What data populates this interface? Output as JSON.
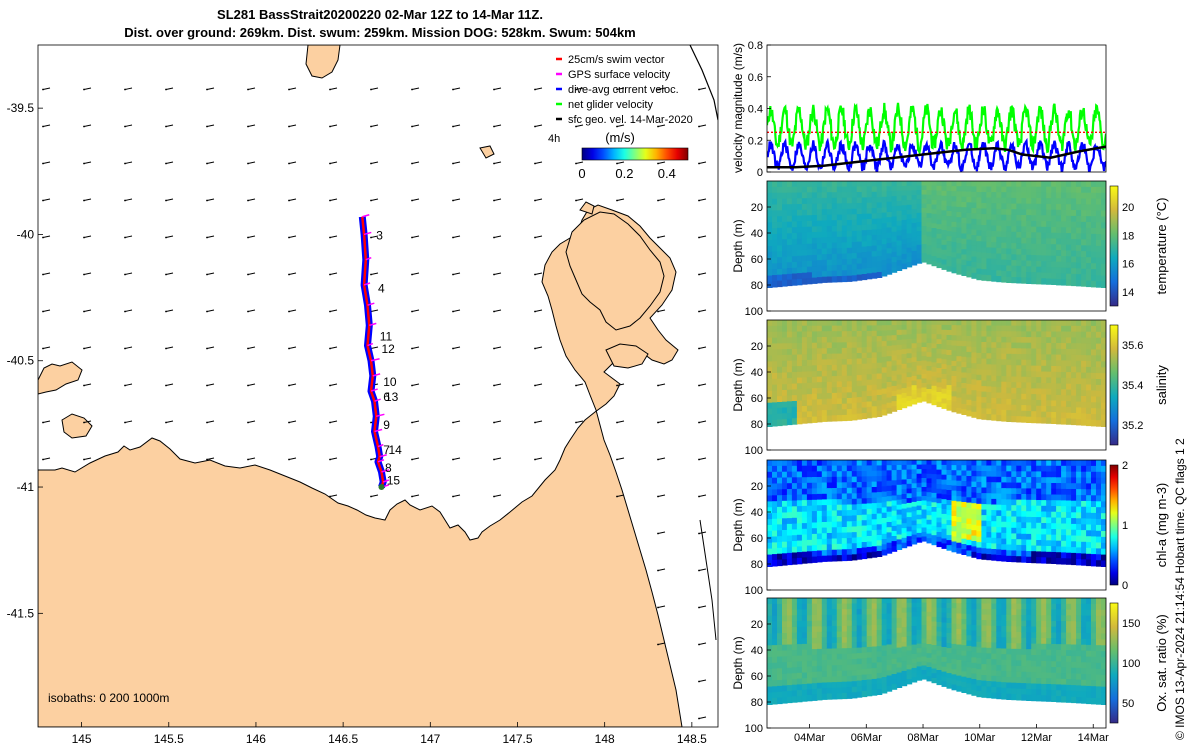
{
  "title": {
    "line1": "SL281 BassStrait20200220 02-Mar 12Z to 14-Mar 11Z.",
    "line2": "Dist. over ground: 269km. Dist. swum: 259km. Mission DOG: 528km. Swum: 504km"
  },
  "footer": "© IMOS 13-Apr-2024 21:14:54 Hobart time. QC flags 1  2",
  "colors": {
    "land": "#fcd0a1",
    "track_blue": "#0000ff",
    "track_red": "#ff0000",
    "gps_magenta": "#ff00ff",
    "net_green": "#00ff00",
    "geo_black": "#000000"
  },
  "chart_data": [
    {
      "type": "map",
      "xlim": [
        144.75,
        148.65
      ],
      "ylim": [
        -41.95,
        -39.25
      ],
      "xticks": [
        145,
        145.5,
        146,
        146.5,
        147,
        147.5,
        148,
        148.5
      ],
      "xtick_labels": [
        "145",
        "145.5",
        "146",
        "146.5",
        "147",
        "147.5",
        "148",
        "148.5"
      ],
      "yticks": [
        -39.5,
        -40,
        -40.5,
        -41,
        -41.5
      ],
      "ytick_labels": [
        "-39.5",
        "-40",
        "-40.5",
        "-41",
        "-41.5"
      ],
      "legend": {
        "entries": [
          "25cm/s swim vector",
          "GPS surface velocity",
          "dive-avg current veloc.",
          "net glider velocity",
          "sfc geo. vel. 14-Mar-2020"
        ],
        "colors": [
          "#ff0000",
          "#ff00ff",
          "#0000ff",
          "#00ff00",
          "#000000"
        ],
        "placement": "top-right"
      },
      "speed_label": "4h",
      "colorbar": {
        "label": "(m/s)",
        "range": [
          0,
          0.5
        ],
        "tick_labels": [
          "0",
          "0.2",
          "0.4"
        ],
        "tick_values": [
          0,
          0.2,
          0.4
        ]
      },
      "isobaths_label": "isobaths: 0   200  1000m",
      "track": {
        "lon": [
          146.61,
          146.62,
          146.63,
          146.62,
          146.64,
          146.65,
          146.64,
          146.66,
          146.67,
          146.66,
          146.68,
          146.69,
          146.68,
          146.7,
          146.71,
          146.7,
          146.72,
          146.73,
          146.72
        ],
        "lat": [
          -39.93,
          -40.0,
          -40.1,
          -40.2,
          -40.28,
          -40.36,
          -40.44,
          -40.5,
          -40.56,
          -40.62,
          -40.66,
          -40.72,
          -40.78,
          -40.84,
          -40.88,
          -40.9,
          -40.94,
          -40.98,
          -41.0
        ]
      },
      "waypoints": [
        {
          "label": "3",
          "lon": 146.69,
          "lat": -40.02
        },
        {
          "label": "4",
          "lon": 146.7,
          "lat": -40.23
        },
        {
          "label": "11",
          "lon": 146.71,
          "lat": -40.42
        },
        {
          "label": "12",
          "lon": 146.72,
          "lat": -40.47
        },
        {
          "label": "10",
          "lon": 146.73,
          "lat": -40.6
        },
        {
          "label": "6",
          "lon": 146.73,
          "lat": -40.66
        },
        {
          "label": "13",
          "lon": 146.74,
          "lat": -40.66
        },
        {
          "label": "9",
          "lon": 146.73,
          "lat": -40.77
        },
        {
          "label": "7",
          "lon": 146.73,
          "lat": -40.87
        },
        {
          "label": "14",
          "lon": 146.76,
          "lat": -40.87
        },
        {
          "label": "8",
          "lon": 146.74,
          "lat": -40.94
        },
        {
          "label": "15",
          "lon": 146.75,
          "lat": -40.99
        }
      ],
      "current_field_direction": "westward"
    },
    {
      "type": "line",
      "ylabel": "velocity magnitude (m/s)",
      "ylim": [
        0,
        0.8
      ],
      "yticks": [
        0,
        0.2,
        0.4,
        0.6,
        0.8
      ],
      "ytick_labels": [
        "0",
        "0.2",
        "0.4",
        "0.6",
        "0.8"
      ],
      "xlim": [
        2.5,
        14.45
      ],
      "series": [
        {
          "role": "net glider velocity",
          "color": "#00ff00",
          "mean": 0.28,
          "amplitude": 0.11,
          "period_days": 0.5
        },
        {
          "role": "dive-avg current veloc.",
          "color": "#0000ff",
          "mean": 0.1,
          "amplitude": 0.07,
          "period_days": 0.5
        },
        {
          "role": "sfc geo. vel. 14-Mar-2020",
          "color": "#000000",
          "x": [
            2.5,
            3.5,
            4.5,
            5.5,
            6.5,
            7.5,
            8.5,
            9.5,
            10.5,
            11.0,
            11.5,
            12.5,
            13.5,
            14.45
          ],
          "y": [
            0.03,
            0.03,
            0.04,
            0.06,
            0.08,
            0.1,
            0.12,
            0.14,
            0.15,
            0.14,
            0.11,
            0.09,
            0.13,
            0.16
          ]
        },
        {
          "role": "25cm/s swim vector",
          "color": "#ff0000",
          "constant": 0.25
        }
      ]
    },
    {
      "type": "heatmap",
      "ylabel": "Depth (m)",
      "colorbar_label": "temperature (°C)",
      "colorbar_range": [
        13,
        21.5
      ],
      "colorbar_ticks": [
        14,
        16,
        18,
        20
      ],
      "colorbar_tick_labels": [
        "14",
        "16",
        "18",
        "20"
      ],
      "ylim": [
        0,
        100
      ],
      "yticks": [
        20,
        40,
        60,
        80,
        100
      ],
      "ytick_labels": [
        "20",
        "40",
        "60",
        "80",
        "100"
      ],
      "bottom_depth_profile": {
        "x": [
          2.5,
          3.5,
          4.5,
          5.5,
          6.5,
          7.5,
          8.0,
          9.0,
          10.0,
          11.0,
          12.0,
          13.0,
          14.45
        ],
        "depth": [
          80,
          78,
          76,
          75,
          72,
          64,
          60,
          68,
          74,
          76,
          77,
          78,
          80
        ]
      },
      "typical_value": 17.5
    },
    {
      "type": "heatmap",
      "ylabel": "Depth (m)",
      "colorbar_label": "salinity",
      "colorbar_range": [
        35.1,
        35.7
      ],
      "colorbar_ticks": [
        35.2,
        35.4,
        35.6
      ],
      "colorbar_tick_labels": [
        "35.2",
        "35.4",
        "35.6"
      ],
      "ylim": [
        0,
        100
      ],
      "yticks": [
        20,
        40,
        60,
        80,
        100
      ],
      "ytick_labels": [
        "20",
        "40",
        "60",
        "80",
        "100"
      ],
      "typical_value": 35.55
    },
    {
      "type": "heatmap",
      "ylabel": "Depth (m)",
      "colorbar_label": "chl-a (mg m-3)",
      "colorbar_range": [
        0,
        2
      ],
      "colorbar_ticks": [
        0,
        1,
        2
      ],
      "colorbar_tick_labels": [
        "0",
        "1",
        "2"
      ],
      "ylim": [
        0,
        100
      ],
      "yticks": [
        20,
        40,
        60,
        80,
        100
      ],
      "ytick_labels": [
        "20",
        "40",
        "60",
        "80",
        "100"
      ],
      "typical_value": 0.55
    },
    {
      "type": "heatmap",
      "ylabel": "Depth (m)",
      "colorbar_label": "Ox. sat. ratio (%)",
      "colorbar_range": [
        25,
        175
      ],
      "colorbar_ticks": [
        50,
        100,
        150
      ],
      "colorbar_tick_labels": [
        "50",
        "100",
        "150"
      ],
      "ylim": [
        0,
        100
      ],
      "yticks": [
        20,
        40,
        60,
        80,
        100
      ],
      "ytick_labels": [
        "20",
        "40",
        "60",
        "80",
        "100"
      ],
      "xticks": [
        4,
        6,
        8,
        10,
        12,
        14
      ],
      "xtick_labels": [
        "04Mar",
        "06Mar",
        "08Mar",
        "10Mar",
        "12Mar",
        "14Mar"
      ],
      "typical_value": 105
    }
  ]
}
